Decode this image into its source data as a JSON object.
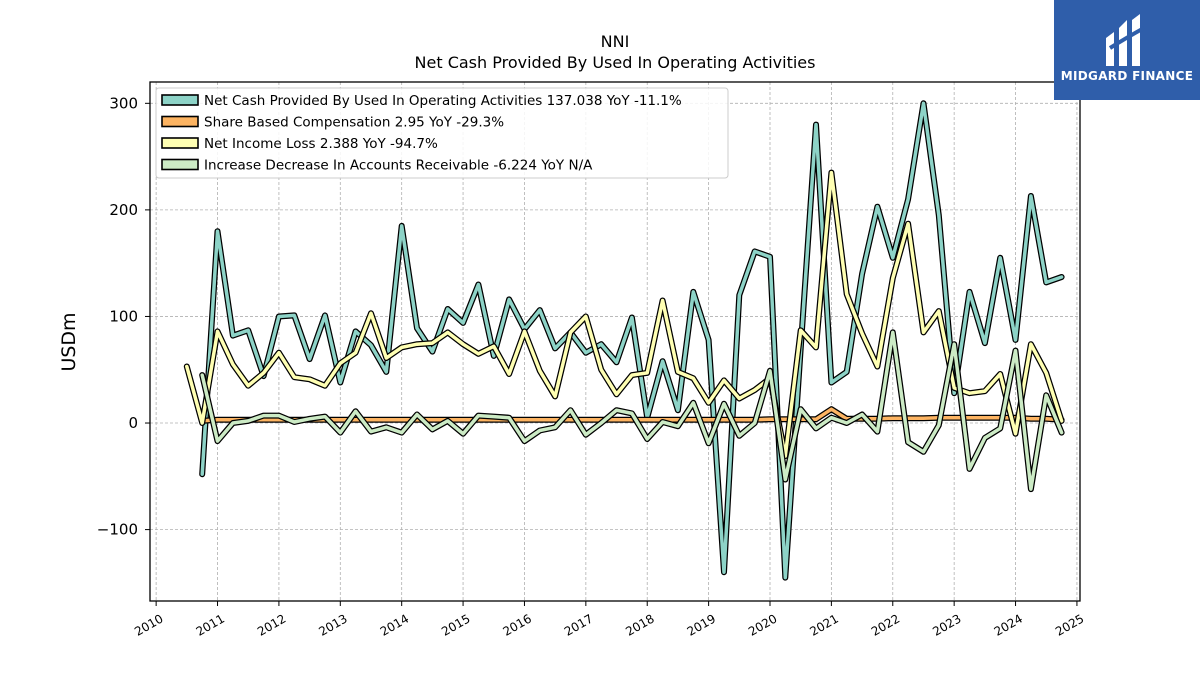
{
  "chart_data": {
    "type": "line",
    "title": "NNI",
    "subtitle": "Net Cash Provided By Used In Operating Activities",
    "ylabel": "USDm",
    "xlabel": "",
    "ylim": [
      -167,
      320
    ],
    "xlim": [
      2009.9,
      2025.05
    ],
    "yticks": [
      -100,
      0,
      100,
      200,
      300
    ],
    "ytick_labels": [
      "−100",
      "0",
      "100",
      "200",
      "300"
    ],
    "xticks": [
      2010,
      2011,
      2012,
      2013,
      2014,
      2015,
      2016,
      2017,
      2018,
      2019,
      2020,
      2021,
      2022,
      2023,
      2024,
      2025
    ],
    "xtick_labels": [
      "2010",
      "2011",
      "2012",
      "2013",
      "2014",
      "2015",
      "2016",
      "2017",
      "2018",
      "2019",
      "2020",
      "2021",
      "2022",
      "2023",
      "2024",
      "2025"
    ],
    "grid": true,
    "legend_position": "top-left",
    "series": [
      {
        "name": "Net Cash Provided By Used In Operating Activities",
        "legend": "Net Cash Provided By Used In Operating Activities  137.038 YoY -11.1%",
        "color": "#8dd3c7",
        "x": [
          2010.75,
          2011.0,
          2011.25,
          2011.5,
          2011.75,
          2012.0,
          2012.25,
          2012.5,
          2012.75,
          2013.0,
          2013.25,
          2013.5,
          2013.75,
          2014.0,
          2014.25,
          2014.5,
          2014.75,
          2015.0,
          2015.25,
          2015.5,
          2015.75,
          2016.0,
          2016.25,
          2016.5,
          2016.75,
          2017.0,
          2017.25,
          2017.5,
          2017.75,
          2018.0,
          2018.25,
          2018.5,
          2018.75,
          2019.0,
          2019.25,
          2019.5,
          2019.75,
          2020.0,
          2020.25,
          2020.5,
          2020.75,
          2021.0,
          2021.25,
          2021.5,
          2021.75,
          2022.0,
          2022.25,
          2022.5,
          2022.75,
          2023.0,
          2023.25,
          2023.5,
          2023.75,
          2024.0,
          2024.25,
          2024.5,
          2024.75
        ],
        "values": [
          -48,
          180,
          82,
          87,
          44,
          100,
          101,
          60,
          101,
          38,
          86,
          73,
          48,
          185,
          89,
          67,
          107,
          94,
          130,
          63,
          116,
          88,
          106,
          70,
          85,
          66,
          74,
          57,
          99,
          5,
          58,
          12,
          123,
          78,
          -140,
          120,
          161,
          156,
          -145,
          70,
          280,
          38,
          48,
          140,
          203,
          155,
          210,
          300,
          195,
          28,
          123,
          75,
          155,
          78,
          213,
          132,
          137
        ]
      },
      {
        "name": "Share Based Compensation",
        "legend": "Share Based Compensation  2.95 YoY -29.3%",
        "color": "#fdb462",
        "x": [
          2010.75,
          2011.0,
          2011.25,
          2011.5,
          2011.75,
          2012.0,
          2012.25,
          2012.5,
          2012.75,
          2013.0,
          2013.25,
          2013.5,
          2013.75,
          2014.0,
          2014.25,
          2014.5,
          2014.75,
          2015.0,
          2015.25,
          2015.5,
          2015.75,
          2016.0,
          2016.25,
          2016.5,
          2016.75,
          2017.0,
          2017.25,
          2017.5,
          2017.75,
          2018.0,
          2018.25,
          2018.5,
          2018.75,
          2019.0,
          2019.25,
          2019.5,
          2019.75,
          2020.0,
          2020.25,
          2020.5,
          2020.75,
          2021.0,
          2021.25,
          2021.5,
          2021.75,
          2022.0,
          2022.25,
          2022.5,
          2022.75,
          2023.0,
          2023.25,
          2023.5,
          2023.75,
          2024.0,
          2024.25,
          2024.5,
          2024.75
        ],
        "values": [
          2.0,
          3.0,
          3.0,
          3.0,
          3.0,
          3.0,
          3.0,
          3.0,
          3.0,
          3.0,
          3.0,
          3.0,
          3.0,
          3.0,
          3.0,
          3.0,
          3.0,
          3.0,
          3.0,
          3.0,
          3.0,
          3.0,
          3.0,
          3.0,
          3.0,
          3.0,
          3.0,
          3.0,
          3.0,
          3.0,
          3.0,
          3.0,
          3.0,
          3.0,
          3.0,
          3.0,
          3.0,
          3.5,
          3.5,
          3.5,
          3.5,
          13.0,
          4.0,
          4.0,
          4.0,
          4.5,
          4.5,
          4.5,
          5.0,
          5.0,
          5.0,
          5.0,
          5.0,
          5.0,
          4.0,
          4.0,
          3.0
        ]
      },
      {
        "name": "Net Income Loss",
        "legend": "Net Income Loss  2.388 YoY -94.7%",
        "color": "#ffffb3",
        "x": [
          2010.5,
          2010.75,
          2011.0,
          2011.25,
          2011.5,
          2011.75,
          2012.0,
          2012.25,
          2012.5,
          2012.75,
          2013.0,
          2013.25,
          2013.5,
          2013.75,
          2014.0,
          2014.25,
          2014.5,
          2014.75,
          2015.0,
          2015.25,
          2015.5,
          2015.75,
          2016.0,
          2016.25,
          2016.5,
          2016.75,
          2017.0,
          2017.25,
          2017.5,
          2017.75,
          2018.0,
          2018.25,
          2018.5,
          2018.75,
          2019.0,
          2019.25,
          2019.5,
          2019.75,
          2020.0,
          2020.25,
          2020.5,
          2020.75,
          2021.0,
          2021.25,
          2021.5,
          2021.75,
          2022.0,
          2022.25,
          2022.5,
          2022.75,
          2023.0,
          2023.25,
          2023.5,
          2023.75,
          2024.0,
          2024.25,
          2024.5,
          2024.75
        ],
        "values": [
          53,
          0,
          86,
          55,
          35,
          47,
          66,
          43,
          41,
          35,
          56,
          66,
          103,
          61,
          71,
          74,
          75,
          85,
          74,
          65,
          72,
          46,
          86,
          49,
          25,
          85,
          100,
          50,
          27,
          45,
          47,
          115,
          48,
          42,
          19,
          40,
          23,
          31,
          42,
          -31,
          87,
          71,
          235,
          121,
          84,
          53,
          136,
          187,
          85,
          105,
          33,
          28,
          30,
          46,
          -10,
          74,
          47,
          2
        ]
      },
      {
        "name": "Increase Decrease In Accounts Receivable",
        "legend": "Increase Decrease In Accounts Receivable  -6.224 YoY N/A",
        "color": "#ccebc5",
        "x": [
          2010.75,
          2011.0,
          2011.25,
          2011.5,
          2011.75,
          2012.0,
          2012.25,
          2012.5,
          2012.75,
          2013.0,
          2013.25,
          2013.5,
          2013.75,
          2014.0,
          2014.25,
          2014.5,
          2014.75,
          2015.0,
          2015.25,
          2015.5,
          2015.75,
          2016.0,
          2016.25,
          2016.5,
          2016.75,
          2017.0,
          2017.25,
          2017.5,
          2017.75,
          2018.0,
          2018.25,
          2018.5,
          2018.75,
          2019.0,
          2019.25,
          2019.5,
          2019.75,
          2020.0,
          2020.25,
          2020.5,
          2020.75,
          2021.0,
          2021.25,
          2021.5,
          2021.75,
          2022.0,
          2022.25,
          2022.5,
          2022.75,
          2023.0,
          2023.25,
          2023.5,
          2023.75,
          2024.0,
          2024.25,
          2024.5,
          2024.75
        ],
        "values": [
          45,
          -17,
          0,
          2,
          7,
          7,
          1,
          4,
          6,
          -9,
          11,
          -8,
          -4,
          -9,
          8,
          -6,
          2,
          -10,
          7,
          6,
          5,
          -17,
          -7,
          -4,
          12,
          -11,
          0,
          12,
          9,
          -15,
          1,
          -3,
          19,
          -19,
          18,
          -12,
          0,
          49,
          -53,
          13,
          -5,
          5,
          0,
          8,
          -8,
          85,
          -18,
          -27,
          -2,
          74,
          -43,
          -14,
          -5,
          68,
          -62,
          26,
          -9
        ]
      }
    ]
  },
  "logo": {
    "text": "MIDGARD FINANCE",
    "bg_color": "#2f5eaa"
  }
}
